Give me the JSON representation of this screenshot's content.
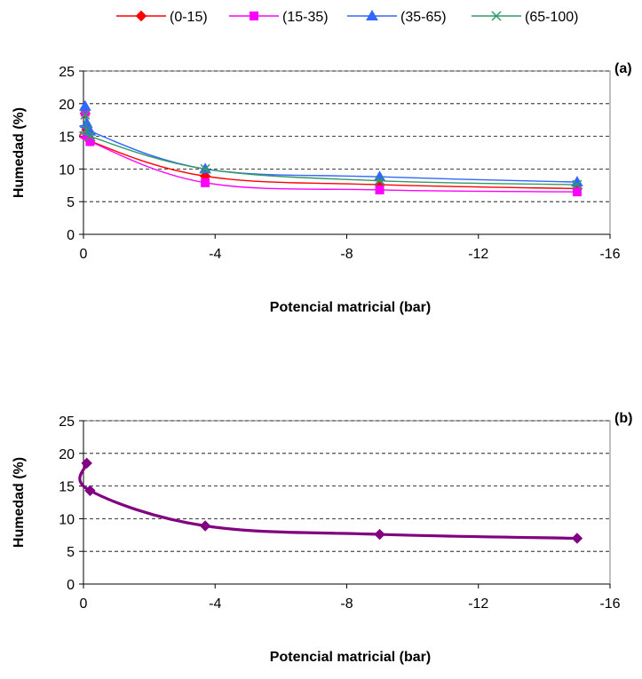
{
  "chart_data": [
    {
      "type": "line",
      "panel_label": "(a)",
      "xlabel": "Potencial matricial (bar)",
      "ylabel": "Humedad (%)",
      "xlim": [
        0,
        -16
      ],
      "ylim": [
        0,
        25
      ],
      "x_ticks": [
        0,
        -4,
        -8,
        -12,
        -16
      ],
      "y_ticks": [
        0,
        5,
        10,
        15,
        20,
        25
      ],
      "grid": "horizontal dashed",
      "legend_position": "top",
      "series": [
        {
          "name": "(0-15)",
          "color": "#FF0000",
          "marker": "diamond",
          "x": [
            -0.05,
            -0.1,
            -0.2,
            -3.7,
            -9.0,
            -15.0
          ],
          "y": [
            18.5,
            16.0,
            14.3,
            8.9,
            7.6,
            7.0
          ]
        },
        {
          "name": "(15-35)",
          "color": "#FF00FF",
          "marker": "square",
          "x": [
            -0.05,
            -0.1,
            -0.2,
            -3.7,
            -9.0,
            -15.0
          ],
          "y": [
            18.7,
            15.2,
            14.2,
            7.9,
            6.8,
            6.5
          ]
        },
        {
          "name": "(35-65)",
          "color": "#3366FF",
          "marker": "triangle",
          "x": [
            -0.05,
            -0.1,
            -0.2,
            -3.7,
            -9.0,
            -15.0
          ],
          "y": [
            19.6,
            17.0,
            15.8,
            10.0,
            8.8,
            8.0
          ]
        },
        {
          "name": "(65-100)",
          "color": "#339966",
          "marker": "x",
          "x": [
            -0.05,
            -0.1,
            -0.2,
            -3.7,
            -9.0,
            -15.0
          ],
          "y": [
            18.3,
            16.0,
            15.0,
            10.0,
            8.2,
            7.6
          ]
        }
      ]
    },
    {
      "type": "line",
      "panel_label": "(b)",
      "xlabel": "Potencial matricial (bar)",
      "ylabel": "Humedad (%)",
      "xlim": [
        0,
        -16
      ],
      "ylim": [
        0,
        25
      ],
      "x_ticks": [
        0,
        -4,
        -8,
        -12,
        -16
      ],
      "y_ticks": [
        0,
        5,
        10,
        15,
        20,
        25
      ],
      "grid": "horizontal dashed",
      "series": [
        {
          "name": "",
          "color": "#800080",
          "marker": "diamond",
          "x": [
            -0.1,
            -0.2,
            -3.7,
            -9.0,
            -15.0
          ],
          "y": [
            18.5,
            14.3,
            8.9,
            7.6,
            7.0
          ]
        }
      ]
    }
  ]
}
